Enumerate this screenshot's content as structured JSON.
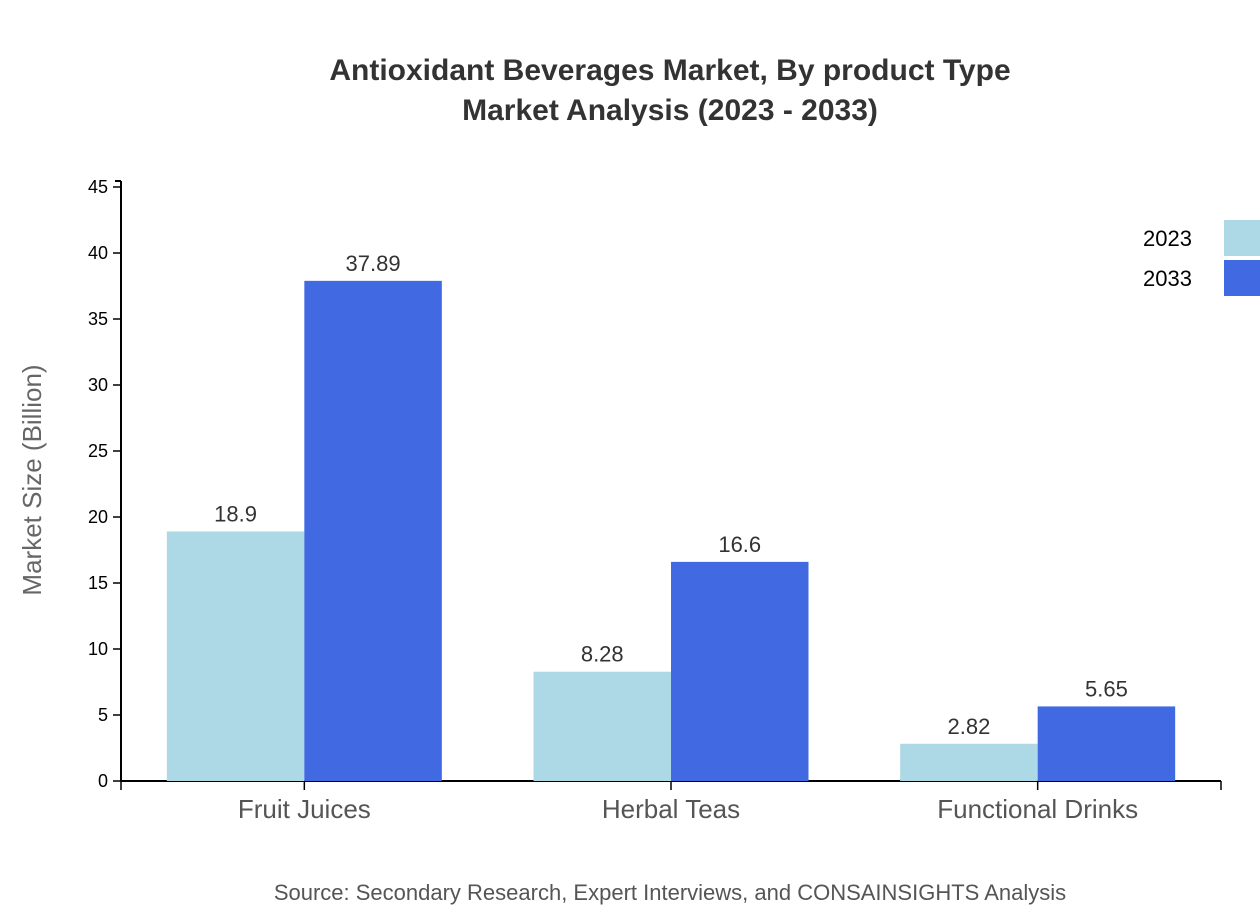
{
  "chart_data": {
    "type": "bar",
    "title": "Antioxidant Beverages Market, By product Type",
    "subtitle": "Market Analysis (2023 - 2033)",
    "xlabel": "",
    "ylabel": "Market Size (Billion)",
    "ylim": [
      0,
      45
    ],
    "yticks": [
      0,
      5,
      10,
      15,
      20,
      25,
      30,
      35,
      40,
      45
    ],
    "categories": [
      "Fruit Juices",
      "Herbal Teas",
      "Functional Drinks"
    ],
    "series": [
      {
        "name": "2023",
        "color": "#add8e6",
        "values": [
          18.9,
          8.28,
          2.82
        ],
        "labels": [
          "18.9",
          "8.28",
          "2.82"
        ]
      },
      {
        "name": "2033",
        "color": "#4169e1",
        "values": [
          37.89,
          16.6,
          5.65
        ],
        "labels": [
          "37.89",
          "16.6",
          "5.65"
        ]
      }
    ],
    "grid": false,
    "legend_position": "top-right",
    "source": "Source: Secondary Research, Expert Interviews, and CONSAINSIGHTS Analysis"
  }
}
